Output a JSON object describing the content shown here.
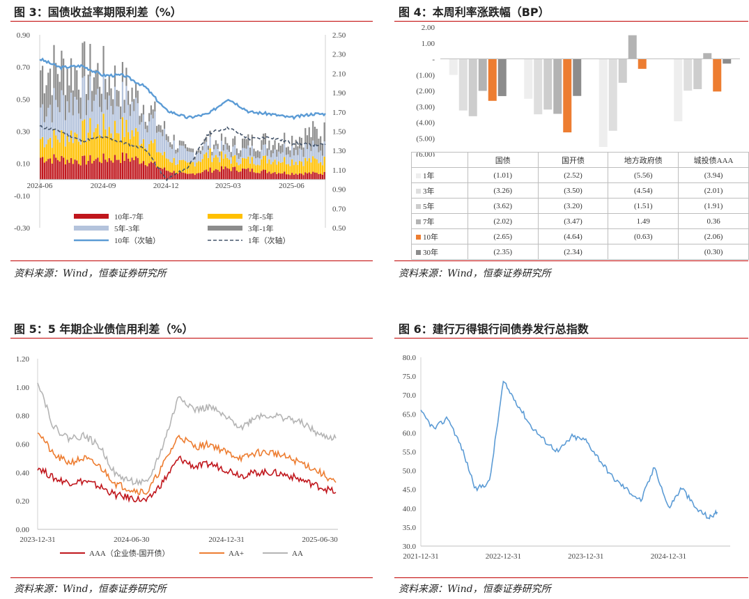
{
  "figures": [
    {
      "title": "图 3：国债收益率期限利差（%）",
      "source": "资料来源：Wind，恒泰证券研究所"
    },
    {
      "title": "图 4：本周利率涨跌幅（BP）",
      "source": "资料来源：Wind，恒泰证券研究所"
    },
    {
      "title": "图 5：5 年期企业债信用利差（%）",
      "source": "资料来源：Wind，恒泰证券研究所"
    },
    {
      "title": "图 6：建行万得银行间债券发行总指数",
      "source": "资料来源：Wind，恒泰证券研究所"
    }
  ],
  "chart_data": [
    {
      "type": "bar",
      "x_ticks": [
        "2024-06",
        "2024-09",
        "2024-12",
        "2025-03",
        "2025-06"
      ],
      "y_ticks": [
        "0.90",
        "0.70",
        "0.50",
        "0.30",
        "0.10",
        "-0.10",
        "-0.30"
      ],
      "y2_ticks": [
        "2.50",
        "2.30",
        "2.10",
        "1.90",
        "1.70",
        "1.50",
        "1.30",
        "1.10",
        "0.90",
        "0.70",
        "0.50"
      ],
      "ylim": [
        -0.3,
        0.9
      ],
      "y2lim": [
        0.5,
        2.5
      ],
      "x": [
        "2024-06",
        "2024-07",
        "2024-08",
        "2024-09",
        "2024-10",
        "2024-11",
        "2024-12",
        "2025-01",
        "2025-02",
        "2025-03",
        "2025-04",
        "2025-05",
        "2025-06",
        "2025-07"
      ],
      "series": [
        {
          "name": "10年-7年",
          "kind": "bar",
          "color": "#c0161c",
          "values": [
            0.14,
            0.13,
            0.12,
            0.13,
            0.14,
            0.12,
            0.06,
            0.03,
            0.06,
            0.07,
            0.06,
            0.05,
            0.04,
            0.04
          ]
        },
        {
          "name": "7年-5年",
          "kind": "bar",
          "color": "#ffc000",
          "values": [
            0.12,
            0.14,
            0.18,
            0.2,
            0.18,
            0.14,
            0.08,
            0.06,
            0.1,
            0.06,
            0.06,
            0.08,
            0.08,
            0.08
          ]
        },
        {
          "name": "5年-3年",
          "kind": "bar",
          "color": "#b4c3dc",
          "values": [
            0.2,
            0.22,
            0.22,
            0.2,
            0.18,
            0.16,
            0.12,
            0.06,
            0.06,
            0.05,
            0.06,
            0.06,
            0.08,
            0.08
          ]
        },
        {
          "name": "3年-1年",
          "kind": "bar",
          "color": "#8c8c8c",
          "values": [
            0.24,
            0.22,
            0.18,
            0.14,
            0.1,
            0.06,
            0.04,
            0.02,
            0.03,
            0.04,
            0.06,
            0.06,
            0.06,
            0.1
          ]
        },
        {
          "name": "10年（次轴）",
          "kind": "line",
          "axis": "y2",
          "color": "#5b9bd5",
          "values": [
            2.25,
            2.16,
            2.18,
            2.08,
            2.08,
            1.96,
            1.72,
            1.64,
            1.68,
            1.84,
            1.7,
            1.68,
            1.64,
            1.68
          ]
        },
        {
          "name": "1年（次轴）",
          "kind": "dashed",
          "axis": "y2",
          "color": "#44546a",
          "values": [
            1.55,
            1.5,
            1.4,
            1.44,
            1.38,
            1.32,
            1.0,
            1.12,
            1.48,
            1.54,
            1.42,
            1.44,
            1.38,
            1.36
          ]
        }
      ]
    },
    {
      "type": "bar",
      "y_ticks": [
        "2.00",
        "1.00",
        "-",
        "(1.00)",
        "(2.00)",
        "(3.00)",
        "(4.00)",
        "(5.00)",
        "(6.00)"
      ],
      "ylim": [
        -6,
        2
      ],
      "categories": [
        "国债",
        "国开债",
        "地方政府债",
        "城投债AAA"
      ],
      "series": [
        {
          "name": "1年",
          "color": "#eeeeee",
          "values": [
            -1.01,
            -2.52,
            -5.56,
            -3.94
          ],
          "labels": [
            "(1.01)",
            "(2.52)",
            "(5.56)",
            "(3.94)"
          ]
        },
        {
          "name": "3年",
          "color": "#dedede",
          "values": [
            -3.26,
            -3.5,
            -4.54,
            -2.01
          ],
          "labels": [
            "(3.26)",
            "(3.50)",
            "(4.54)",
            "(2.01)"
          ]
        },
        {
          "name": "5年",
          "color": "#cdcdcd",
          "values": [
            -3.62,
            -3.2,
            -1.51,
            -1.91
          ],
          "labels": [
            "(3.62)",
            "(3.20)",
            "(1.51)",
            "(1.91)"
          ]
        },
        {
          "name": "7年",
          "color": "#b3b3b3",
          "values": [
            -2.02,
            -3.47,
            1.49,
            0.36
          ],
          "labels": [
            "(2.02)",
            "(3.47)",
            "1.49",
            "0.36"
          ]
        },
        {
          "name": "10年",
          "color": "#ed7d31",
          "values": [
            -2.65,
            -4.64,
            -0.63,
            -2.06
          ],
          "labels": [
            "(2.65)",
            "(4.64)",
            "(0.63)",
            "(2.06)"
          ]
        },
        {
          "name": "30年",
          "color": "#8c8c8c",
          "values": [
            -2.35,
            -2.34,
            null,
            -0.3
          ],
          "labels": [
            "(2.35)",
            "(2.34)",
            "",
            "(0.30)"
          ]
        }
      ]
    },
    {
      "type": "line",
      "x_ticks": [
        "2023-12-31",
        "2024-06-30",
        "2024-12-31",
        "2025-06-30"
      ],
      "y_ticks": [
        "1.20",
        "1.00",
        "0.80",
        "0.60",
        "0.40",
        "0.20",
        "0.00"
      ],
      "ylim": [
        0,
        1.2
      ],
      "x": [
        "2023-12-31",
        "2024-01-31",
        "2024-02-29",
        "2024-03-31",
        "2024-04-30",
        "2024-05-31",
        "2024-06-30",
        "2024-07-31",
        "2024-08-31",
        "2024-09-30",
        "2024-10-31",
        "2024-11-30",
        "2024-12-31",
        "2025-01-31",
        "2025-02-28",
        "2025-03-31",
        "2025-04-30",
        "2025-05-31",
        "2025-06-30",
        "2025-07-31"
      ],
      "series": [
        {
          "name": "AAA（企业债-国开债）",
          "color": "#c0161c",
          "values": [
            0.44,
            0.36,
            0.33,
            0.34,
            0.3,
            0.24,
            0.22,
            0.2,
            0.34,
            0.5,
            0.44,
            0.46,
            0.42,
            0.38,
            0.4,
            0.4,
            0.38,
            0.34,
            0.3,
            0.26
          ]
        },
        {
          "name": "AA+",
          "color": "#ed7d31",
          "values": [
            0.7,
            0.52,
            0.47,
            0.5,
            0.44,
            0.32,
            0.28,
            0.26,
            0.46,
            0.66,
            0.58,
            0.6,
            0.54,
            0.5,
            0.54,
            0.54,
            0.5,
            0.46,
            0.4,
            0.33
          ]
        },
        {
          "name": "AA",
          "color": "#b4b4b4",
          "values": [
            1.05,
            0.72,
            0.64,
            0.66,
            0.58,
            0.38,
            0.34,
            0.32,
            0.6,
            0.94,
            0.84,
            0.86,
            0.78,
            0.72,
            0.8,
            0.8,
            0.78,
            0.74,
            0.66,
            0.64
          ]
        }
      ]
    },
    {
      "type": "line",
      "x_ticks": [
        "2021-12-31",
        "2022-12-31",
        "2023-12-31",
        "2024-12-31"
      ],
      "y_ticks": [
        "80.0",
        "75.0",
        "70.0",
        "65.0",
        "60.0",
        "55.0",
        "50.0",
        "45.0",
        "40.0",
        "35.0",
        "30.0"
      ],
      "ylim": [
        30,
        80
      ],
      "x": [
        "2021-12-31",
        "2022-02-28",
        "2022-04-30",
        "2022-06-30",
        "2022-08-31",
        "2022-10-31",
        "2022-12-31",
        "2023-02-28",
        "2023-04-30",
        "2023-06-30",
        "2023-08-31",
        "2023-10-31",
        "2023-12-31",
        "2024-02-29",
        "2024-04-30",
        "2024-06-30",
        "2024-08-31",
        "2024-10-31",
        "2024-12-31",
        "2025-02-28",
        "2025-04-30",
        "2025-06-30",
        "2025-08-04"
      ],
      "series": [
        {
          "name": "",
          "color": "#5b9bd5",
          "values": [
            65.5,
            61.0,
            64.0,
            56.0,
            45.0,
            47.0,
            73.5,
            68.0,
            62.0,
            58.0,
            55.0,
            59.0,
            58.0,
            53.0,
            48.0,
            45.0,
            42.0,
            51.0,
            40.0,
            45.5,
            40.0,
            37.5,
            39.0
          ]
        }
      ]
    }
  ]
}
